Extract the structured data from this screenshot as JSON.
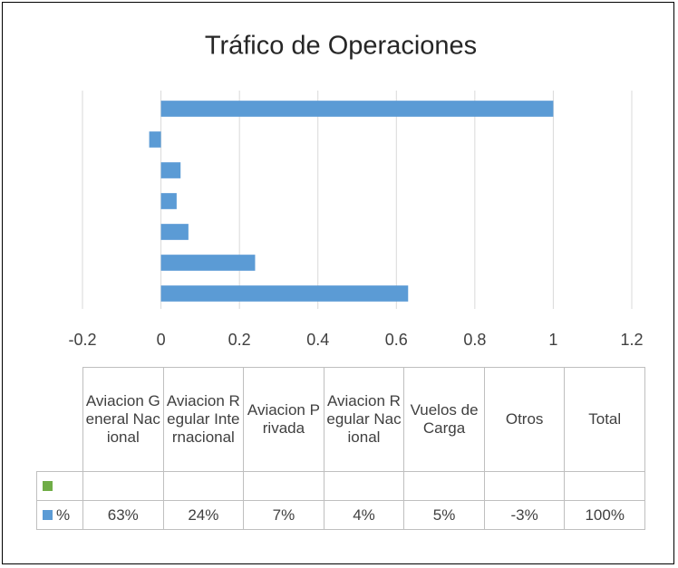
{
  "chart_data": {
    "type": "bar",
    "orientation": "horizontal",
    "title": "Tráfico de Operaciones",
    "categories": [
      "Aviacion General Nacional",
      "Aviacion Regular Internacional",
      "Aviacion Privada",
      "Aviacion Regular Nacional",
      "Vuelos de Carga",
      "Otros",
      "Total"
    ],
    "series": [
      {
        "name": null,
        "color": "#70ad47",
        "values": [
          null,
          null,
          null,
          null,
          null,
          null,
          null
        ]
      },
      {
        "name": "%",
        "color": "#5b9bd5",
        "values": [
          0.63,
          0.24,
          0.07,
          0.04,
          0.05,
          -0.03,
          1
        ],
        "value_labels": [
          "63%",
          "24%",
          "7%",
          "4%",
          "5%",
          "-3%",
          "100%"
        ]
      }
    ],
    "xlim": [
      -0.2,
      1.2
    ],
    "xticks": [
      -0.2,
      0,
      0.2,
      0.4,
      0.6,
      0.8,
      1,
      1.2
    ],
    "grid": true,
    "data_table": true
  }
}
